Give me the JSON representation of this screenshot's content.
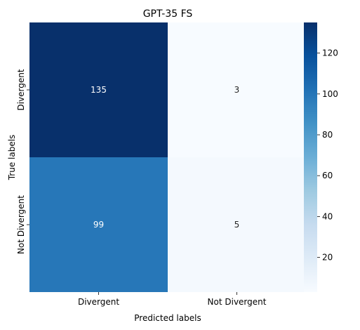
{
  "chart_data": {
    "type": "heatmap",
    "title": "GPT-35 FS",
    "xlabel": "Predicted labels",
    "ylabel": "True labels",
    "x_categories": [
      "Divergent",
      "Not Divergent"
    ],
    "y_categories": [
      "Divergent",
      "Not Divergent"
    ],
    "values": [
      [
        135,
        3
      ],
      [
        99,
        5
      ]
    ],
    "colormap": "Blues",
    "vmin": 3,
    "vmax": 135,
    "colorbar_ticks": [
      20,
      40,
      60,
      80,
      100,
      120
    ],
    "colorbar_tick_labels": [
      "20",
      "40",
      "60",
      "80",
      "100",
      "120"
    ],
    "grid": false
  }
}
